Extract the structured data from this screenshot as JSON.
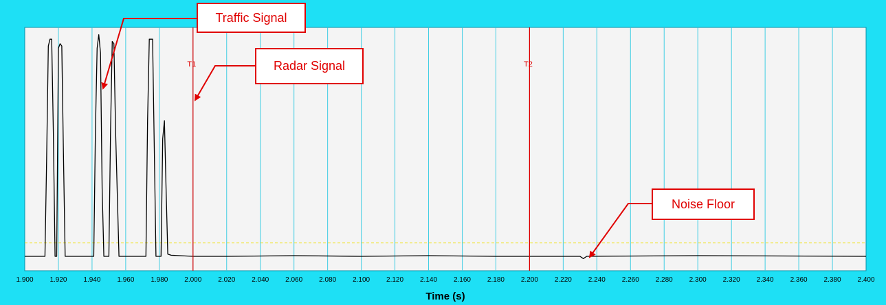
{
  "colors": {
    "frame": "#1ee0f5",
    "plot_background": "#f4f4f4",
    "gridline": "#3fcde3",
    "signal": "#000000",
    "cursor": "#e00000",
    "threshold": "#f0e000",
    "callout": "#e00000"
  },
  "callouts": {
    "traffic": "Traffic Signal",
    "radar": "Radar Signal",
    "noise": "Noise Floor"
  },
  "chart_data": {
    "type": "line",
    "xlabel": "Time (s)",
    "title": "",
    "ylabel": "",
    "xlim": [
      1.9,
      2.4
    ],
    "ylim": [
      0,
      1
    ],
    "x_ticks": [
      "1.900",
      "1.920",
      "1.940",
      "1.960",
      "1.980",
      "2.000",
      "2.020",
      "2.040",
      "2.060",
      "2.080",
      "2.100",
      "2.120",
      "2.140",
      "2.160",
      "2.180",
      "2.200",
      "2.220",
      "2.240",
      "2.260",
      "2.280",
      "2.300",
      "2.320",
      "2.340",
      "2.360",
      "2.380",
      "2.400"
    ],
    "grid": true,
    "cursors": [
      {
        "label": "T1",
        "x": 2.0
      },
      {
        "label": "T2",
        "x": 2.2
      }
    ],
    "threshold": 0.06,
    "series": [
      {
        "x": [
          1.9,
          1.912,
          1.913,
          1.914,
          1.915,
          1.916,
          1.917,
          1.918,
          1.919,
          1.92,
          1.921,
          1.922,
          1.923,
          1.924,
          1.925,
          1.926,
          1.939,
          1.941,
          1.942,
          1.943,
          1.944,
          1.945,
          1.946,
          1.947,
          1.948,
          1.95,
          1.951,
          1.952,
          1.953,
          1.954,
          1.956,
          1.97,
          1.972,
          1.973,
          1.974,
          1.976,
          1.978,
          1.981,
          1.982,
          1.983,
          1.984,
          1.985,
          1.987,
          2.0,
          2.02,
          2.06,
          2.1,
          2.14,
          2.18,
          2.23,
          2.232,
          2.234,
          2.3,
          2.4
        ],
        "y": [
          0,
          0,
          0.42,
          0.93,
          0.96,
          0.96,
          0.55,
          0,
          0,
          0.92,
          0.94,
          0.93,
          0.45,
          0,
          0,
          0,
          0,
          0,
          0.55,
          0.92,
          0.98,
          0.9,
          0.3,
          0,
          0,
          0,
          0.55,
          0.95,
          0.94,
          0.55,
          0,
          0,
          0,
          0.6,
          0.96,
          0.96,
          0,
          0,
          0.52,
          0.6,
          0.3,
          0.01,
          0.005,
          0,
          0,
          0.003,
          0,
          0.003,
          0,
          0,
          -0.01,
          0,
          0.003,
          0
        ]
      }
    ]
  }
}
